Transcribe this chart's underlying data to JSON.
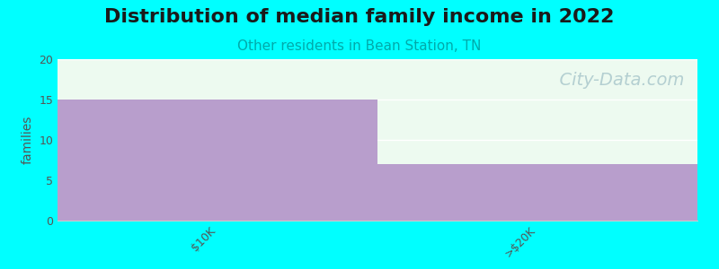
{
  "title": "Distribution of median family income in 2022",
  "subtitle": "Other residents in Bean Station, TN",
  "categories": [
    "$10K",
    ">$20K"
  ],
  "values": [
    15,
    7
  ],
  "bar_color": "#b89ecc",
  "plot_bg_color": "#edfaf0",
  "fig_bg_color": "#00ffff",
  "ylabel": "families",
  "ylim": [
    0,
    20
  ],
  "yticks": [
    0,
    5,
    10,
    15,
    20
  ],
  "title_fontsize": 16,
  "subtitle_fontsize": 11,
  "subtitle_color": "#00aaaa",
  "ylabel_fontsize": 10,
  "tick_fontsize": 9,
  "watermark": "  City-Data.com",
  "watermark_color": "#aac8cc",
  "watermark_fontsize": 14
}
